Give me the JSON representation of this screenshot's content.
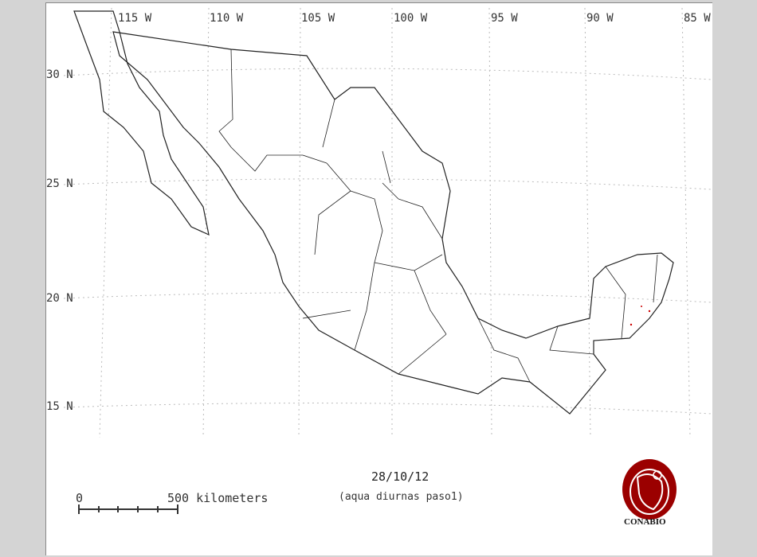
{
  "map": {
    "longitude_labels": [
      "115 W",
      "110 W",
      "105 W",
      "100 W",
      "95 W",
      "90 W",
      "85 W"
    ],
    "latitude_labels": [
      "30 N",
      "25 N",
      "20 N",
      "15 N"
    ],
    "date": "28/10/12",
    "subtitle": "(aqua diurnas paso1)",
    "scale_bar": {
      "start_label": "0",
      "end_label": "500 kilometers"
    },
    "logo_text": "CONABIO",
    "colors": {
      "background": "#d4d4d4",
      "map": "#ffffff",
      "outline": "#222222",
      "hotspot": "#cc0000",
      "logo": "#9b0000"
    }
  }
}
